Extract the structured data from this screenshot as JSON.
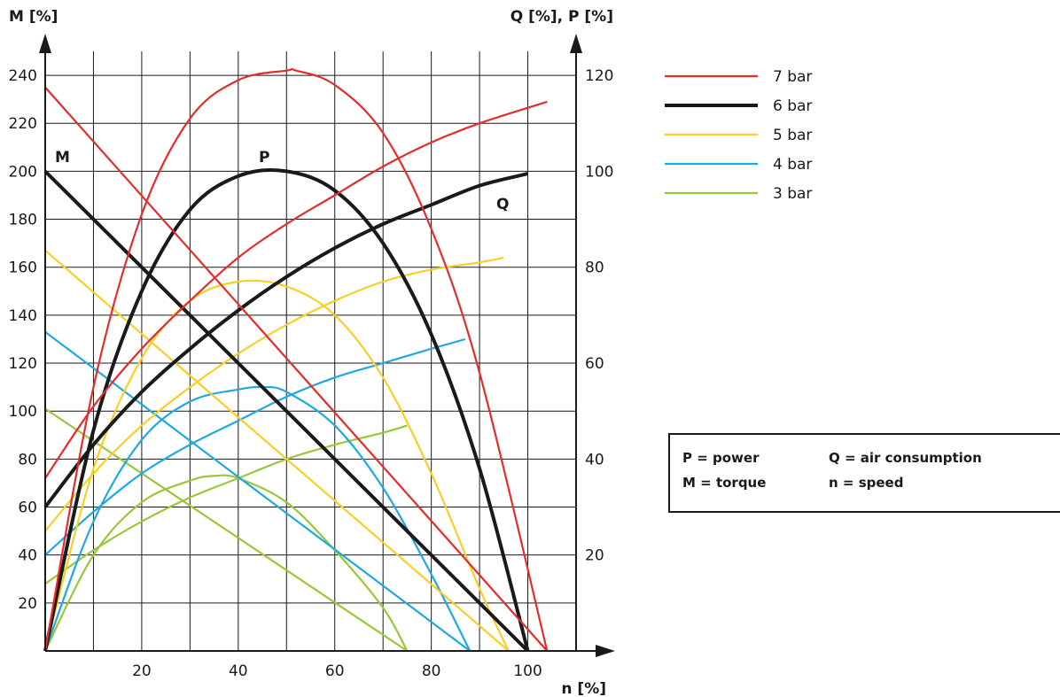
{
  "chart_data": {
    "type": "line",
    "y_left_label": "M [%]",
    "y_right_label": "Q [%], P [%]",
    "x_label": "n [%]",
    "x_ticks": [
      20,
      40,
      60,
      80,
      100
    ],
    "y_left_ticks": [
      20,
      40,
      60,
      80,
      100,
      120,
      140,
      160,
      180,
      200,
      220,
      240
    ],
    "y_right_ticks": [
      20,
      40,
      60,
      80,
      100,
      120
    ],
    "x_range": [
      0,
      110
    ],
    "y_left_range": [
      0,
      250
    ],
    "y_right_range": [
      0,
      125
    ],
    "grid": true,
    "curve_labels": [
      "M",
      "P",
      "Q"
    ],
    "colors": {
      "7 bar": "#e32d2d",
      "6 bar": "#1a1a1a",
      "5 bar": "#f7cf26",
      "4 bar": "#1fa9e1",
      "3 bar": "#98c83a"
    },
    "legend": {
      "position": "top-right",
      "entries": [
        "7 bar",
        "6 bar",
        "5 bar",
        "4 bar",
        "3 bar"
      ]
    },
    "series": [
      {
        "name": "7 bar",
        "torque": {
          "x": [
            0,
            104
          ],
          "y": [
            235,
            0
          ]
        },
        "air": {
          "x": [
            0,
            10,
            20,
            30,
            40,
            50,
            60,
            70,
            80,
            90,
            104
          ],
          "y": [
            36,
            51,
            63,
            73,
            82,
            89,
            95,
            101,
            106,
            110,
            114.5
          ]
        },
        "power": {
          "x": [
            0,
            10,
            20,
            30,
            40,
            50,
            52,
            60,
            70,
            80,
            90,
            104
          ],
          "y": [
            0,
            55,
            91,
            111,
            119,
            121,
            121,
            118,
            108,
            88,
            58,
            0
          ]
        }
      },
      {
        "name": "6 bar",
        "torque": {
          "x": [
            0,
            100
          ],
          "y": [
            200,
            0
          ]
        },
        "air": {
          "x": [
            0,
            10,
            20,
            30,
            40,
            50,
            60,
            70,
            80,
            90,
            100
          ],
          "y": [
            30,
            43,
            54,
            63,
            71,
            78,
            84,
            89,
            93,
            97,
            99.5
          ]
        },
        "power": {
          "x": [
            0,
            10,
            20,
            30,
            40,
            50,
            60,
            70,
            80,
            90,
            100
          ],
          "y": [
            0,
            46,
            75,
            92,
            99,
            100,
            96,
            85,
            66,
            38,
            0
          ]
        }
      },
      {
        "name": "5 bar",
        "torque": {
          "x": [
            0,
            96
          ],
          "y": [
            167,
            0
          ]
        },
        "air": {
          "x": [
            0,
            10,
            20,
            30,
            40,
            50,
            60,
            70,
            80,
            90,
            95
          ],
          "y": [
            25,
            37,
            47,
            55,
            62,
            68,
            73,
            77,
            79.5,
            81,
            82
          ]
        },
        "power": {
          "x": [
            0,
            10,
            20,
            30,
            40,
            50,
            60,
            70,
            80,
            90,
            96
          ],
          "y": [
            0,
            38,
            61,
            73,
            77,
            76,
            70,
            57,
            37,
            13,
            0
          ]
        }
      },
      {
        "name": "4 bar",
        "torque": {
          "x": [
            0,
            88
          ],
          "y": [
            133,
            0
          ]
        },
        "air": {
          "x": [
            0,
            10,
            20,
            30,
            40,
            50,
            60,
            70,
            80,
            87
          ],
          "y": [
            20,
            29,
            37,
            43,
            48,
            53,
            57,
            60,
            63,
            65
          ]
        },
        "power": {
          "x": [
            0,
            10,
            20,
            30,
            40,
            45,
            50,
            60,
            70,
            80,
            88
          ],
          "y": [
            0,
            27,
            44,
            52,
            54.5,
            55,
            54,
            47,
            34,
            16,
            0
          ]
        }
      },
      {
        "name": "3 bar",
        "torque": {
          "x": [
            0,
            75
          ],
          "y": [
            101,
            0
          ]
        },
        "air": {
          "x": [
            0,
            10,
            20,
            30,
            40,
            50,
            60,
            70,
            75
          ],
          "y": [
            14,
            21,
            27,
            32,
            36,
            40,
            43,
            45.5,
            47
          ]
        },
        "power": {
          "x": [
            0,
            10,
            20,
            30,
            35,
            40,
            50,
            60,
            70,
            75
          ],
          "y": [
            0,
            20,
            31,
            35.5,
            36.5,
            36,
            31,
            21,
            9,
            0
          ]
        }
      }
    ]
  },
  "notes": [
    {
      "key": "P = power",
      "desc": "Q = air consumption"
    },
    {
      "key": "M = torque",
      "desc": "n = speed"
    }
  ]
}
